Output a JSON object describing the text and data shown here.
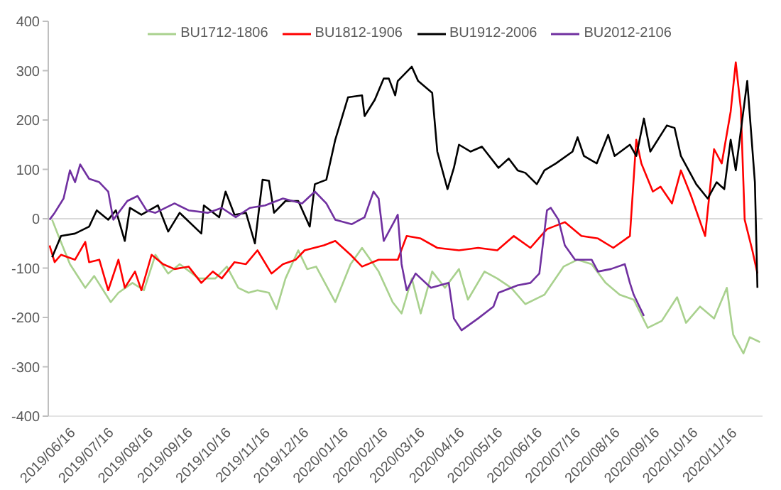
{
  "chart_data": {
    "type": "line",
    "marker": "none",
    "legend": "top",
    "xlim": [
      "2019-06-16",
      "2020-12-27"
    ],
    "xticks": [
      {
        "value": "2019-06-16",
        "label": "2019/06/16"
      },
      {
        "value": "2019-07-16",
        "label": "2019/07/16"
      },
      {
        "value": "2019-08-16",
        "label": "2019/08/16"
      },
      {
        "value": "2019-09-16",
        "label": "2019/09/16"
      },
      {
        "value": "2019-10-16",
        "label": "2019/10/16"
      },
      {
        "value": "2019-11-16",
        "label": "2019/11/16"
      },
      {
        "value": "2019-12-16",
        "label": "2019/12/16"
      },
      {
        "value": "2020-01-16",
        "label": "2020/01/16"
      },
      {
        "value": "2020-02-16",
        "label": "2020/02/16"
      },
      {
        "value": "2020-03-16",
        "label": "2020/03/16"
      },
      {
        "value": "2020-04-16",
        "label": "2020/04/16"
      },
      {
        "value": "2020-05-16",
        "label": "2020/05/16"
      },
      {
        "value": "2020-06-16",
        "label": "2020/06/16"
      },
      {
        "value": "2020-07-16",
        "label": "2020/07/16"
      },
      {
        "value": "2020-08-16",
        "label": "2020/08/16"
      },
      {
        "value": "2020-09-16",
        "label": "2020/09/16"
      },
      {
        "value": "2020-10-16",
        "label": "2020/10/16"
      },
      {
        "value": "2020-11-16",
        "label": "2020/11/16"
      }
    ],
    "ylim": [
      -400,
      400
    ],
    "yticks": [
      -400,
      -300,
      -200,
      -100,
      0,
      100,
      200,
      300,
      400
    ],
    "ref_lines": [
      {
        "axis": "y",
        "value": 0,
        "color": "#d9d9d9"
      }
    ],
    "series": [
      {
        "name": "BU1712-1806",
        "color": "#a9d18e",
        "x": [
          "2019-06-19",
          "2019-06-24",
          "2019-07-03",
          "2019-07-15",
          "2019-07-22",
          "2019-08-04",
          "2019-08-10",
          "2019-08-21",
          "2019-08-30",
          "2019-09-08",
          "2019-09-18",
          "2019-09-27",
          "2019-10-12",
          "2019-10-25",
          "2019-11-03",
          "2019-11-12",
          "2019-11-20",
          "2019-11-27",
          "2019-12-06",
          "2019-12-12",
          "2019-12-19",
          "2019-12-29",
          "2020-01-05",
          "2020-01-12",
          "2020-01-27",
          "2020-02-08",
          "2020-02-17",
          "2020-03-01",
          "2020-03-12",
          "2020-03-19",
          "2020-03-27",
          "2020-04-03",
          "2020-04-12",
          "2020-04-22",
          "2020-05-03",
          "2020-05-10",
          "2020-05-23",
          "2020-06-02",
          "2020-06-13",
          "2020-06-24",
          "2020-07-09",
          "2020-07-24",
          "2020-08-04",
          "2020-08-15",
          "2020-08-26",
          "2020-09-06",
          "2020-09-17",
          "2020-09-28",
          "2020-10-09",
          "2020-10-21",
          "2020-10-28",
          "2020-11-08",
          "2020-11-19",
          "2020-11-29",
          "2020-12-04",
          "2020-12-12",
          "2020-12-17",
          "2020-12-25"
        ],
        "values": [
          -2,
          -35,
          -92,
          -140,
          -116,
          -169,
          -150,
          -130,
          -145,
          -73,
          -111,
          -92,
          -121,
          -121,
          -97,
          -140,
          -150,
          -145,
          -150,
          -183,
          -121,
          -64,
          -102,
          -97,
          -169,
          -92,
          -59,
          -107,
          -169,
          -192,
          -121,
          -192,
          -107,
          -140,
          -102,
          -164,
          -107,
          -121,
          -140,
          -173,
          -154,
          -97,
          -83,
          -92,
          -130,
          -154,
          -164,
          -221,
          -207,
          -159,
          -211,
          -178,
          -202,
          -140,
          -235,
          -273,
          -240,
          -250
        ]
      },
      {
        "name": "BU1812-1906",
        "color": "#ff0000",
        "x": [
          "2019-06-17",
          "2019-06-21",
          "2019-06-26",
          "2019-07-07",
          "2019-07-15",
          "2019-07-18",
          "2019-07-26",
          "2019-08-02",
          "2019-08-10",
          "2019-08-15",
          "2019-08-23",
          "2019-08-28",
          "2019-09-05",
          "2019-09-14",
          "2019-09-23",
          "2019-10-04",
          "2019-10-14",
          "2019-10-23",
          "2019-10-30",
          "2019-11-09",
          "2019-11-18",
          "2019-11-27",
          "2019-12-08",
          "2019-12-17",
          "2019-12-27",
          "2020-01-03",
          "2020-01-18",
          "2020-01-27",
          "2020-02-08",
          "2020-02-17",
          "2020-03-01",
          "2020-03-14",
          "2020-03-16",
          "2020-03-23",
          "2020-04-03",
          "2020-04-16",
          "2020-05-03",
          "2020-05-18",
          "2020-06-02",
          "2020-06-15",
          "2020-06-28",
          "2020-07-11",
          "2020-07-25",
          "2020-08-07",
          "2020-08-20",
          "2020-09-01",
          "2020-09-14",
          "2020-09-19",
          "2020-09-23",
          "2020-10-02",
          "2020-10-08",
          "2020-10-17",
          "2020-10-24",
          "2020-11-01",
          "2020-11-12",
          "2020-11-19",
          "2020-11-25",
          "2020-12-02",
          "2020-12-06",
          "2020-12-10",
          "2020-12-13",
          "2020-12-19",
          "2020-12-23"
        ],
        "values": [
          -54,
          -88,
          -73,
          -83,
          -47,
          -88,
          -83,
          -145,
          -83,
          -140,
          -107,
          -145,
          -73,
          -92,
          -102,
          -97,
          -130,
          -107,
          -121,
          -88,
          -92,
          -64,
          -111,
          -92,
          -83,
          -64,
          -54,
          -45,
          -73,
          -97,
          -83,
          -83,
          -83,
          -35,
          -40,
          -59,
          -64,
          -59,
          -64,
          -35,
          -59,
          -21,
          -7,
          -35,
          -40,
          -59,
          -35,
          160,
          112,
          55,
          65,
          31,
          98,
          46,
          -35,
          141,
          112,
          217,
          317,
          222,
          -2,
          -64,
          -111
        ]
      },
      {
        "name": "BU1912-2006",
        "color": "#000000",
        "x": [
          "2019-06-19",
          "2019-06-26",
          "2019-07-07",
          "2019-07-18",
          "2019-07-24",
          "2019-08-02",
          "2019-08-08",
          "2019-08-15",
          "2019-08-19",
          "2019-08-28",
          "2019-09-10",
          "2019-09-18",
          "2019-09-27",
          "2019-10-14",
          "2019-10-16",
          "2019-10-28",
          "2019-11-02",
          "2019-11-09",
          "2019-11-18",
          "2019-11-25",
          "2019-12-01",
          "2019-12-06",
          "2019-12-10",
          "2019-12-19",
          "2019-12-29",
          "2020-01-07",
          "2020-01-11",
          "2020-01-20",
          "2020-01-27",
          "2020-02-06",
          "2020-02-17",
          "2020-02-19",
          "2020-02-27",
          "2020-03-05",
          "2020-03-09",
          "2020-03-14",
          "2020-03-16",
          "2020-03-27",
          "2020-04-01",
          "2020-04-12",
          "2020-04-16",
          "2020-04-24",
          "2020-04-29",
          "2020-05-03",
          "2020-05-12",
          "2020-05-21",
          "2020-06-03",
          "2020-06-11",
          "2020-06-18",
          "2020-06-24",
          "2020-07-03",
          "2020-07-09",
          "2020-07-18",
          "2020-07-31",
          "2020-08-04",
          "2020-08-09",
          "2020-08-19",
          "2020-08-28",
          "2020-09-02",
          "2020-09-14",
          "2020-09-19",
          "2020-09-25",
          "2020-09-30",
          "2020-10-13",
          "2020-10-19",
          "2020-10-24",
          "2020-11-05",
          "2020-11-14",
          "2020-11-21",
          "2020-11-27",
          "2020-12-02",
          "2020-12-06",
          "2020-12-15",
          "2020-12-21",
          "2020-12-23"
        ],
        "values": [
          -78,
          -35,
          -30,
          -16,
          17,
          -2,
          17,
          -45,
          22,
          8,
          27,
          -26,
          12,
          -30,
          27,
          3,
          55,
          8,
          12,
          -50,
          79,
          77,
          12,
          36,
          36,
          -16,
          70,
          79,
          160,
          246,
          250,
          208,
          241,
          284,
          284,
          250,
          279,
          308,
          279,
          255,
          136,
          60,
          103,
          150,
          136,
          146,
          103,
          122,
          98,
          93,
          70,
          98,
          112,
          136,
          165,
          127,
          112,
          170,
          127,
          150,
          127,
          203,
          136,
          189,
          184,
          127,
          70,
          41,
          74,
          60,
          160,
          98,
          279,
          74,
          -140
        ]
      },
      {
        "name": "BU2012-2106",
        "color": "#7030a0",
        "x": [
          "2019-06-17",
          "2019-06-21",
          "2019-06-28",
          "2019-07-03",
          "2019-07-07",
          "2019-07-11",
          "2019-07-18",
          "2019-07-26",
          "2019-08-02",
          "2019-08-06",
          "2019-08-17",
          "2019-08-25",
          "2019-09-01",
          "2019-09-08",
          "2019-09-23",
          "2019-10-04",
          "2019-10-19",
          "2019-10-30",
          "2019-11-10",
          "2019-11-21",
          "2019-12-03",
          "2019-12-17",
          "2020-01-01",
          "2020-01-11",
          "2020-01-20",
          "2020-01-27",
          "2020-02-09",
          "2020-02-19",
          "2020-02-26",
          "2020-03-01",
          "2020-03-05",
          "2020-03-14",
          "2020-03-16",
          "2020-03-19",
          "2020-03-23",
          "2020-03-30",
          "2020-04-11",
          "2020-04-25",
          "2020-04-29",
          "2020-05-05",
          "2020-05-18",
          "2020-05-30",
          "2020-06-03",
          "2020-06-18",
          "2020-06-28",
          "2020-07-05",
          "2020-07-11",
          "2020-07-14",
          "2020-07-20",
          "2020-07-25",
          "2020-08-02",
          "2020-08-15",
          "2020-08-20",
          "2020-08-30",
          "2020-09-10",
          "2020-09-14",
          "2020-09-17",
          "2020-09-25"
        ],
        "values": [
          -2,
          12,
          41,
          98,
          74,
          110,
          81,
          74,
          55,
          -2,
          36,
          46,
          17,
          12,
          31,
          17,
          12,
          22,
          3,
          22,
          27,
          41,
          31,
          55,
          31,
          -2,
          -11,
          3,
          55,
          41,
          -45,
          -2,
          8,
          -92,
          -145,
          -111,
          -140,
          -130,
          -202,
          -226,
          -202,
          -178,
          -150,
          -135,
          -130,
          -111,
          17,
          22,
          -2,
          -54,
          -83,
          -83,
          -107,
          -102,
          -92,
          -130,
          -154,
          -197
        ]
      }
    ]
  }
}
